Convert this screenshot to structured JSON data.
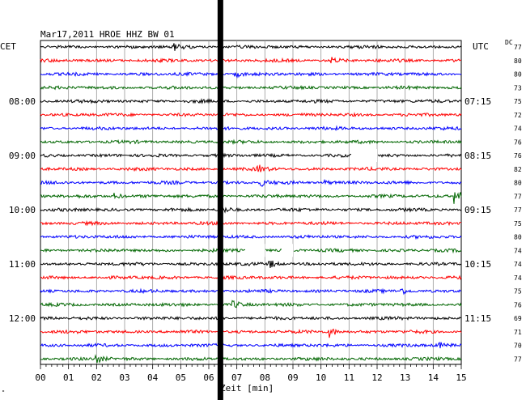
{
  "chart_data": {
    "type": "line",
    "title": "Mar17,2011   HROE HHZ BW 01",
    "left_timezone": "CET",
    "right_timezone": "UTC",
    "dc_label": "DC",
    "xlabel": "Zeit [min]",
    "xlim": [
      0,
      15
    ],
    "x_ticks": [
      "00",
      "01",
      "02",
      "03",
      "04",
      "05",
      "06",
      "07",
      "08",
      "09",
      "10",
      "11",
      "12",
      "13",
      "14",
      "15"
    ],
    "trace_colors": [
      "#000000",
      "#ff0000",
      "#0000ff",
      "#006600"
    ],
    "left_time_labels": [
      {
        "row": 4,
        "text": "08:00"
      },
      {
        "row": 8,
        "text": "09:00"
      },
      {
        "row": 12,
        "text": "10:00"
      },
      {
        "row": 16,
        "text": "11:00"
      },
      {
        "row": 20,
        "text": "12:00"
      }
    ],
    "right_time_labels": [
      {
        "row": 4,
        "text": "07:15"
      },
      {
        "row": 8,
        "text": "08:15"
      },
      {
        "row": 12,
        "text": "09:15"
      },
      {
        "row": 16,
        "text": "10:15"
      },
      {
        "row": 20,
        "text": "11:15"
      }
    ],
    "dc_values": [
      "77",
      "80",
      "80",
      "73",
      "75",
      "72",
      "74",
      "76",
      "76",
      "82",
      "80",
      "77",
      "77",
      "75",
      "80",
      "74",
      "74",
      "74",
      "75",
      "76",
      "69",
      "71",
      "70",
      "77"
    ],
    "gaps": [
      {
        "row": 8,
        "start": 11.1,
        "end": 12.0
      },
      {
        "row": 15,
        "start": 7.3,
        "end": 8.0
      },
      {
        "row": 15,
        "start": 8.6,
        "end": 9.0
      }
    ],
    "events": [
      {
        "row": 0,
        "x": 4.8,
        "amp": 1.5
      },
      {
        "row": 1,
        "x": 10.4,
        "amp": 1.4
      },
      {
        "row": 2,
        "x": 7.0,
        "amp": 1.3
      },
      {
        "row": 9,
        "x": 7.8,
        "amp": 1.6
      },
      {
        "row": 10,
        "x": 7.9,
        "amp": 1.5
      },
      {
        "row": 10,
        "x": 10.1,
        "amp": 1.3
      },
      {
        "row": 11,
        "x": 14.8,
        "amp": 4.0
      },
      {
        "row": 11,
        "x": 2.7,
        "amp": 1.4
      },
      {
        "row": 12,
        "x": 6.5,
        "amp": 1.8
      },
      {
        "row": 16,
        "x": 8.2,
        "amp": 2.0
      },
      {
        "row": 18,
        "x": 12.9,
        "amp": 1.5
      },
      {
        "row": 19,
        "x": 6.9,
        "amp": 1.6
      },
      {
        "row": 21,
        "x": 10.3,
        "amp": 3.0
      },
      {
        "row": 22,
        "x": 14.2,
        "amp": 1.4
      },
      {
        "row": 23,
        "x": 2.0,
        "amp": 2.0
      }
    ],
    "dropout_marker_x": 6.4,
    "grid": true,
    "corner_mark": "\""
  }
}
